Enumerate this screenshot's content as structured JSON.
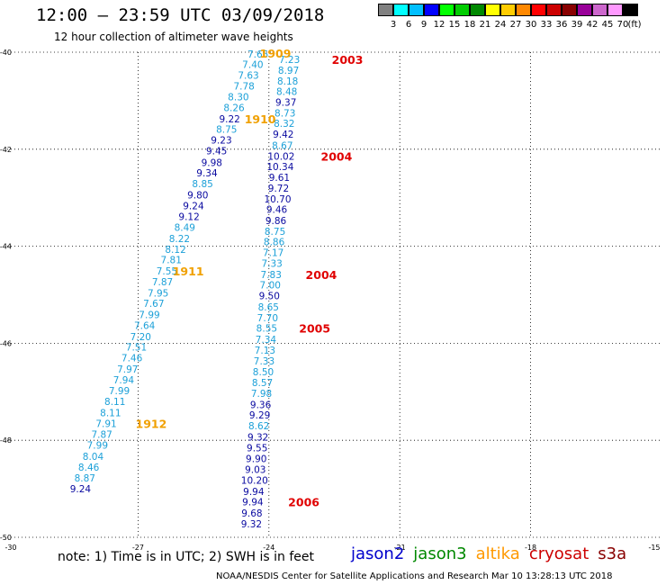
{
  "title": "12:00 — 23:59 UTC 03/09/2018",
  "subtitle": "12 hour collection of altimeter wave heights",
  "scale": {
    "unit": "(ft)",
    "colors": [
      "#808080",
      "#00ffff",
      "#00bfff",
      "#0000ff",
      "#00ff00",
      "#00cc00",
      "#008800",
      "#ffff00",
      "#ffcc00",
      "#ff8800",
      "#ff0000",
      "#cc0000",
      "#880000",
      "#990099",
      "#cc66cc",
      "#ff99ff",
      "#000000"
    ],
    "labels": [
      "3",
      "6",
      "9",
      "12",
      "15",
      "18",
      "21",
      "24",
      "27",
      "30",
      "33",
      "36",
      "39",
      "42",
      "45",
      "70"
    ]
  },
  "note": "note: 1) Time is in UTC; 2) SWH is in feet",
  "legend": [
    {
      "label": "jason2",
      "color": "#0000cc"
    },
    {
      "label": "jason3",
      "color": "#008800"
    },
    {
      "label": "altika",
      "color": "#ff9900"
    },
    {
      "label": "cryosat",
      "color": "#cc0000"
    },
    {
      "label": "s3a",
      "color": "#880000"
    }
  ],
  "footer": "NOAA/NESDIS Center for Satellite Applications and Research   Mar 10 13:28:13 UTC 2018",
  "chart_data": {
    "type": "scatter",
    "title": "12:00 — 23:59 UTC 03/09/2018",
    "subtitle": "12 hour collection of altimeter wave heights",
    "xlabel": "",
    "ylabel": "",
    "xlim": [
      -30,
      -15
    ],
    "ylim": [
      -50,
      -40
    ],
    "x_ticks": [
      "-30",
      "-27",
      "-24",
      "-21",
      "-18",
      "-15"
    ],
    "y_ticks": [
      "-40",
      "-42",
      "-44",
      "-46",
      "-48",
      "-50"
    ],
    "grid": true,
    "colors": {
      "light": "#1ca0d8",
      "dark": "#0a0aa0",
      "time_altika": "#f0a000",
      "time_cryosat": "#e00000"
    },
    "series": [
      {
        "name": "altika",
        "points": [
          {
            "x": -24.25,
            "y": -40.04,
            "v": "7.65",
            "c": "light"
          },
          {
            "x": -24.37,
            "y": -40.25,
            "v": "7.40",
            "c": "light"
          },
          {
            "x": -24.47,
            "y": -40.47,
            "v": "7.63",
            "c": "light"
          },
          {
            "x": -24.57,
            "y": -40.7,
            "v": "7.78",
            "c": "light"
          },
          {
            "x": -24.7,
            "y": -40.92,
            "v": "8.30",
            "c": "light"
          },
          {
            "x": -24.8,
            "y": -41.14,
            "v": "8.26",
            "c": "light"
          },
          {
            "x": -24.9,
            "y": -41.37,
            "v": "9.22",
            "c": "dark"
          },
          {
            "x": -24.97,
            "y": -41.59,
            "v": "8.75",
            "c": "light"
          },
          {
            "x": -25.09,
            "y": -41.81,
            "v": "9.23",
            "c": "dark"
          },
          {
            "x": -25.2,
            "y": -42.03,
            "v": "9.45",
            "c": "dark"
          },
          {
            "x": -25.31,
            "y": -42.27,
            "v": "9.98",
            "c": "dark"
          },
          {
            "x": -25.42,
            "y": -42.49,
            "v": "9.34",
            "c": "dark"
          },
          {
            "x": -25.52,
            "y": -42.71,
            "v": "8.85",
            "c": "light"
          },
          {
            "x": -25.63,
            "y": -42.94,
            "v": "9.80",
            "c": "dark"
          },
          {
            "x": -25.73,
            "y": -43.16,
            "v": "9.24",
            "c": "dark"
          },
          {
            "x": -25.83,
            "y": -43.39,
            "v": "9.12",
            "c": "dark"
          },
          {
            "x": -25.93,
            "y": -43.61,
            "v": "8.49",
            "c": "light"
          },
          {
            "x": -26.05,
            "y": -43.84,
            "v": "8.22",
            "c": "light"
          },
          {
            "x": -26.14,
            "y": -44.06,
            "v": "8.12",
            "c": "light"
          },
          {
            "x": -26.24,
            "y": -44.28,
            "v": "7.81",
            "c": "light"
          },
          {
            "x": -26.34,
            "y": -44.51,
            "v": "7.55",
            "c": "light"
          },
          {
            "x": -26.44,
            "y": -44.73,
            "v": "7.87",
            "c": "light"
          },
          {
            "x": -26.54,
            "y": -44.96,
            "v": "7.95",
            "c": "light"
          },
          {
            "x": -26.64,
            "y": -45.18,
            "v": "7.67",
            "c": "light"
          },
          {
            "x": -26.74,
            "y": -45.41,
            "v": "7.99",
            "c": "light"
          },
          {
            "x": -26.85,
            "y": -45.63,
            "v": "7.64",
            "c": "light"
          },
          {
            "x": -26.94,
            "y": -45.86,
            "v": "7.20",
            "c": "light"
          },
          {
            "x": -27.04,
            "y": -46.08,
            "v": "7.51",
            "c": "light"
          },
          {
            "x": -27.14,
            "y": -46.3,
            "v": "7.46",
            "c": "light"
          },
          {
            "x": -27.24,
            "y": -46.53,
            "v": "7.97",
            "c": "light"
          },
          {
            "x": -27.33,
            "y": -46.75,
            "v": "7.94",
            "c": "light"
          },
          {
            "x": -27.43,
            "y": -46.98,
            "v": "7.99",
            "c": "light"
          },
          {
            "x": -27.53,
            "y": -47.2,
            "v": "8.11",
            "c": "light"
          },
          {
            "x": -27.63,
            "y": -47.43,
            "v": "8.11",
            "c": "light"
          },
          {
            "x": -27.73,
            "y": -47.65,
            "v": "7.91",
            "c": "light"
          },
          {
            "x": -27.83,
            "y": -47.88,
            "v": "7.87",
            "c": "light"
          },
          {
            "x": -27.93,
            "y": -48.1,
            "v": "7.99",
            "c": "light"
          },
          {
            "x": -28.03,
            "y": -48.33,
            "v": "8.04",
            "c": "light"
          },
          {
            "x": -28.13,
            "y": -48.55,
            "v": "8.46",
            "c": "light"
          },
          {
            "x": -28.22,
            "y": -48.78,
            "v": "8.87",
            "c": "light"
          },
          {
            "x": -28.32,
            "y": -49.0,
            "v": "9.24",
            "c": "dark"
          }
        ]
      },
      {
        "name": "cryosat",
        "points": [
          {
            "x": -23.53,
            "y": -40.15,
            "v": "7.23",
            "c": "light"
          },
          {
            "x": -23.55,
            "y": -40.37,
            "v": "8.97",
            "c": "light"
          },
          {
            "x": -23.57,
            "y": -40.59,
            "v": "8.18",
            "c": "light"
          },
          {
            "x": -23.59,
            "y": -40.81,
            "v": "8.48",
            "c": "light"
          },
          {
            "x": -23.61,
            "y": -41.03,
            "v": "9.37",
            "c": "dark"
          },
          {
            "x": -23.63,
            "y": -41.25,
            "v": "8.73",
            "c": "light"
          },
          {
            "x": -23.65,
            "y": -41.47,
            "v": "8.32",
            "c": "light"
          },
          {
            "x": -23.67,
            "y": -41.69,
            "v": "9.42",
            "c": "dark"
          },
          {
            "x": -23.69,
            "y": -41.92,
            "v": "8.67",
            "c": "light"
          },
          {
            "x": -23.72,
            "y": -42.14,
            "v": "10.02",
            "c": "dark"
          },
          {
            "x": -23.74,
            "y": -42.36,
            "v": "10.34",
            "c": "dark"
          },
          {
            "x": -23.76,
            "y": -42.58,
            "v": "9.61",
            "c": "dark"
          },
          {
            "x": -23.78,
            "y": -42.8,
            "v": "9.72",
            "c": "dark"
          },
          {
            "x": -23.8,
            "y": -43.02,
            "v": "10.70",
            "c": "dark"
          },
          {
            "x": -23.82,
            "y": -43.24,
            "v": "9.46",
            "c": "dark"
          },
          {
            "x": -23.84,
            "y": -43.47,
            "v": "9.86",
            "c": "dark"
          },
          {
            "x": -23.86,
            "y": -43.69,
            "v": "8.75",
            "c": "light"
          },
          {
            "x": -23.88,
            "y": -43.91,
            "v": "8.86",
            "c": "light"
          },
          {
            "x": -23.9,
            "y": -44.13,
            "v": "7.17",
            "c": "light"
          },
          {
            "x": -23.93,
            "y": -44.35,
            "v": "7.33",
            "c": "light"
          },
          {
            "x": -23.95,
            "y": -44.58,
            "v": "7.83",
            "c": "light"
          },
          {
            "x": -23.97,
            "y": -44.8,
            "v": "7.00",
            "c": "light"
          },
          {
            "x": -23.99,
            "y": -45.02,
            "v": "9.50",
            "c": "dark"
          },
          {
            "x": -24.01,
            "y": -45.25,
            "v": "8.65",
            "c": "light"
          },
          {
            "x": -24.03,
            "y": -45.47,
            "v": "7.70",
            "c": "light"
          },
          {
            "x": -24.05,
            "y": -45.69,
            "v": "8.55",
            "c": "light"
          },
          {
            "x": -24.07,
            "y": -45.92,
            "v": "7.34",
            "c": "light"
          },
          {
            "x": -24.09,
            "y": -46.14,
            "v": "7.13",
            "c": "light"
          },
          {
            "x": -24.11,
            "y": -46.36,
            "v": "7.33",
            "c": "light"
          },
          {
            "x": -24.13,
            "y": -46.59,
            "v": "8.50",
            "c": "light"
          },
          {
            "x": -24.15,
            "y": -46.81,
            "v": "8.57",
            "c": "light"
          },
          {
            "x": -24.17,
            "y": -47.03,
            "v": "7.98",
            "c": "light"
          },
          {
            "x": -24.19,
            "y": -47.26,
            "v": "9.36",
            "c": "dark"
          },
          {
            "x": -24.21,
            "y": -47.48,
            "v": "9.29",
            "c": "dark"
          },
          {
            "x": -24.23,
            "y": -47.7,
            "v": "8.62",
            "c": "light"
          },
          {
            "x": -24.25,
            "y": -47.93,
            "v": "9.32",
            "c": "dark"
          },
          {
            "x": -24.27,
            "y": -48.15,
            "v": "9.55",
            "c": "dark"
          },
          {
            "x": -24.29,
            "y": -48.38,
            "v": "9.90",
            "c": "dark"
          },
          {
            "x": -24.31,
            "y": -48.6,
            "v": "9.03",
            "c": "dark"
          },
          {
            "x": -24.33,
            "y": -48.82,
            "v": "10.20",
            "c": "dark"
          },
          {
            "x": -24.35,
            "y": -49.05,
            "v": "9.94",
            "c": "dark"
          },
          {
            "x": -24.37,
            "y": -49.27,
            "v": "9.94",
            "c": "dark"
          },
          {
            "x": -24.39,
            "y": -49.5,
            "v": "9.68",
            "c": "dark"
          },
          {
            "x": -24.4,
            "y": -49.72,
            "v": "9.32",
            "c": "dark"
          }
        ]
      }
    ],
    "time_labels": [
      {
        "text": "1909",
        "x": -23.85,
        "y": -40.02,
        "satellite": "altika"
      },
      {
        "text": "1910",
        "x": -24.2,
        "y": -41.37,
        "satellite": "altika"
      },
      {
        "text": "1911",
        "x": -25.85,
        "y": -44.51,
        "satellite": "altika"
      },
      {
        "text": "1912",
        "x": -26.7,
        "y": -47.65,
        "satellite": "altika"
      },
      {
        "text": "2003",
        "x": -22.2,
        "y": -40.15,
        "satellite": "cryosat"
      },
      {
        "text": "2004",
        "x": -22.45,
        "y": -42.14,
        "satellite": "cryosat"
      },
      {
        "text": "2004",
        "x": -22.8,
        "y": -44.58,
        "satellite": "cryosat"
      },
      {
        "text": "2005",
        "x": -22.95,
        "y": -45.69,
        "satellite": "cryosat"
      },
      {
        "text": "2006",
        "x": -23.2,
        "y": -49.27,
        "satellite": "cryosat"
      }
    ]
  }
}
